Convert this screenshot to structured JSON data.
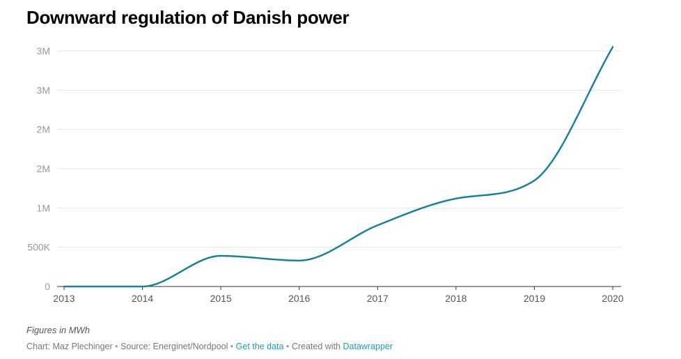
{
  "chart_data": {
    "type": "line",
    "title": "Downward regulation of Danish power",
    "x": [
      2013,
      2014,
      2015,
      2016,
      2017,
      2018,
      2019,
      2020
    ],
    "x_tick_labels": [
      "2013",
      "2014",
      "2015",
      "2016",
      "2017",
      "2018",
      "2019",
      "2020"
    ],
    "y_ticks": [
      0,
      500000,
      1000000,
      1500000,
      2000000,
      2500000,
      3000000
    ],
    "y_tick_labels": [
      "0",
      "500K",
      "1M",
      "2M",
      "2M",
      "3M",
      "3M"
    ],
    "ylim": [
      0,
      3000000
    ],
    "series": [
      {
        "values": [
          0,
          0,
          390000,
          330000,
          780000,
          1120000,
          1350000,
          3050000
        ],
        "color": "#16829a"
      }
    ],
    "grid": true,
    "xlabel": "",
    "ylabel": ""
  },
  "notes": "Figures in MWh",
  "footer": {
    "chart_by": "Chart: Maz Plechinger",
    "separator": "•",
    "source": "Source: Energinet/Nordpool",
    "get_data": "Get the data",
    "created_with": "Created with",
    "tool": "Datawrapper"
  }
}
